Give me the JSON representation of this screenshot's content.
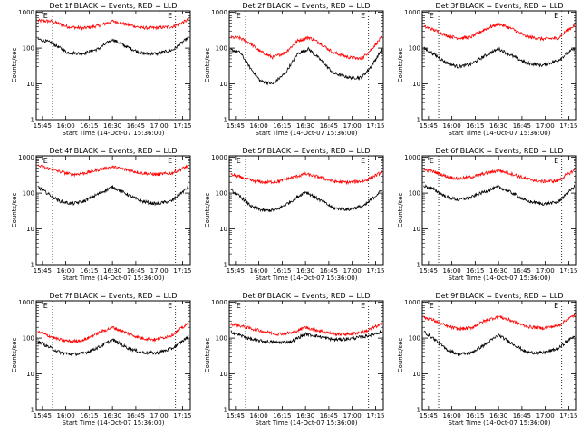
{
  "xlabel": "Start Time (14-Oct-07 15:36:00)",
  "ylabel": "Counts/sec",
  "x_ticks": [
    "15:45",
    "16:00",
    "16:15",
    "16:30",
    "16:45",
    "17:00",
    "17:15"
  ],
  "x_tick_minutes": [
    9,
    24,
    39,
    54,
    69,
    84,
    99
  ],
  "xlim_minutes": [
    5,
    104
  ],
  "y_ticks": [
    "1",
    "10",
    "100",
    "1000"
  ],
  "y_tick_values": [
    1,
    10,
    100,
    1000
  ],
  "ylim": [
    1,
    1100
  ],
  "y_scale": "log",
  "vertical_dotted_lines_minutes": [
    15.5,
    94.5
  ],
  "flag_labels": [
    "E",
    "E"
  ],
  "flag_minutes": [
    11,
    91
  ],
  "colors": {
    "events": "#000000",
    "lld": "#ff0000"
  },
  "chart_data": [
    {
      "type": "line",
      "title": "Det 1f BLACK = Events, RED = LLD",
      "series": [
        {
          "color": "#ff0000",
          "x": [
            6,
            15,
            25,
            35,
            45,
            54,
            63,
            73,
            83,
            93,
            103
          ],
          "y": [
            580,
            560,
            400,
            360,
            420,
            570,
            460,
            370,
            370,
            400,
            620
          ]
        },
        {
          "color": "#000000",
          "x": [
            6,
            15,
            25,
            35,
            45,
            54,
            63,
            73,
            83,
            93,
            103
          ],
          "y": [
            180,
            140,
            75,
            70,
            95,
            175,
            110,
            70,
            70,
            90,
            200
          ]
        }
      ]
    },
    {
      "type": "line",
      "title": "Det 2f BLACK = Events, RED = LLD",
      "series": [
        {
          "color": "#ff0000",
          "x": [
            6,
            12,
            18,
            25,
            33,
            41,
            49,
            56,
            63,
            72,
            82,
            90,
            96,
            103
          ],
          "y": [
            200,
            190,
            140,
            80,
            55,
            75,
            160,
            200,
            140,
            75,
            55,
            50,
            90,
            200
          ]
        },
        {
          "color": "#000000",
          "x": [
            6,
            12,
            18,
            25,
            33,
            41,
            49,
            56,
            63,
            72,
            82,
            90,
            96,
            103
          ],
          "y": [
            90,
            75,
            30,
            12,
            10,
            20,
            70,
            95,
            50,
            20,
            15,
            15,
            30,
            90
          ]
        }
      ]
    },
    {
      "type": "line",
      "title": "Det 3f BLACK = Events, RED = LLD",
      "series": [
        {
          "color": "#ff0000",
          "x": [
            6,
            12,
            20,
            28,
            36,
            45,
            54,
            63,
            72,
            82,
            92,
            103
          ],
          "y": [
            400,
            330,
            230,
            190,
            200,
            330,
            480,
            340,
            210,
            180,
            190,
            450
          ]
        },
        {
          "color": "#000000",
          "x": [
            6,
            12,
            20,
            28,
            36,
            45,
            54,
            63,
            72,
            82,
            92,
            103
          ],
          "y": [
            100,
            70,
            40,
            30,
            35,
            60,
            95,
            60,
            38,
            33,
            45,
            100
          ]
        }
      ]
    },
    {
      "type": "line",
      "title": "Det 4f BLACK = Events, RED = LLD",
      "series": [
        {
          "color": "#ff0000",
          "x": [
            6,
            12,
            20,
            28,
            36,
            45,
            54,
            63,
            72,
            82,
            92,
            103
          ],
          "y": [
            580,
            500,
            400,
            330,
            360,
            450,
            540,
            450,
            370,
            330,
            360,
            580
          ]
        },
        {
          "color": "#000000",
          "x": [
            6,
            12,
            20,
            28,
            36,
            45,
            54,
            63,
            72,
            82,
            92,
            103
          ],
          "y": [
            150,
            100,
            60,
            50,
            60,
            95,
            150,
            95,
            60,
            50,
            60,
            150
          ]
        }
      ]
    },
    {
      "type": "line",
      "title": "Det 5f BLACK = Events, RED = LLD",
      "series": [
        {
          "color": "#ff0000",
          "x": [
            6,
            12,
            20,
            28,
            36,
            45,
            54,
            63,
            72,
            82,
            92,
            103
          ],
          "y": [
            330,
            280,
            220,
            200,
            210,
            270,
            340,
            280,
            210,
            200,
            220,
            380
          ]
        },
        {
          "color": "#000000",
          "x": [
            6,
            12,
            20,
            28,
            36,
            45,
            54,
            63,
            72,
            82,
            92,
            103
          ],
          "y": [
            120,
            80,
            40,
            32,
            35,
            60,
            110,
            65,
            38,
            35,
            45,
            120
          ]
        }
      ]
    },
    {
      "type": "line",
      "title": "Det 6f BLACK = Events, RED = LLD",
      "series": [
        {
          "color": "#ff0000",
          "x": [
            6,
            12,
            20,
            28,
            36,
            45,
            54,
            63,
            72,
            82,
            92,
            103
          ],
          "y": [
            450,
            400,
            300,
            250,
            280,
            350,
            430,
            340,
            250,
            210,
            220,
            450
          ]
        },
        {
          "color": "#000000",
          "x": [
            6,
            12,
            20,
            28,
            36,
            45,
            54,
            63,
            72,
            82,
            92,
            103
          ],
          "y": [
            160,
            130,
            80,
            65,
            75,
            110,
            150,
            100,
            60,
            50,
            55,
            160
          ]
        }
      ]
    },
    {
      "type": "line",
      "title": "Det 7f BLACK = Events, RED = LLD",
      "series": [
        {
          "color": "#ff0000",
          "x": [
            6,
            12,
            20,
            28,
            36,
            45,
            54,
            63,
            72,
            82,
            92,
            103
          ],
          "y": [
            150,
            120,
            90,
            80,
            90,
            140,
            200,
            140,
            100,
            90,
            120,
            260
          ]
        },
        {
          "color": "#000000",
          "x": [
            6,
            12,
            20,
            28,
            36,
            45,
            54,
            63,
            72,
            82,
            92,
            103
          ],
          "y": [
            80,
            60,
            40,
            35,
            38,
            55,
            90,
            55,
            40,
            38,
            50,
            110
          ]
        }
      ]
    },
    {
      "type": "line",
      "title": "Det 8f BLACK = Events, RED = LLD",
      "series": [
        {
          "color": "#ff0000",
          "x": [
            6,
            12,
            20,
            28,
            36,
            45,
            54,
            63,
            72,
            82,
            92,
            103
          ],
          "y": [
            250,
            220,
            180,
            150,
            130,
            140,
            200,
            160,
            130,
            130,
            150,
            250
          ]
        },
        {
          "color": "#000000",
          "x": [
            6,
            12,
            20,
            28,
            36,
            45,
            54,
            63,
            72,
            82,
            92,
            103
          ],
          "y": [
            150,
            120,
            90,
            80,
            75,
            80,
            130,
            110,
            90,
            95,
            110,
            150
          ]
        }
      ]
    },
    {
      "type": "line",
      "title": "Det 9f BLACK = Events, RED = LLD",
      "series": [
        {
          "color": "#ff0000",
          "x": [
            6,
            12,
            20,
            28,
            36,
            45,
            54,
            63,
            72,
            82,
            92,
            103
          ],
          "y": [
            380,
            320,
            220,
            180,
            190,
            300,
            400,
            300,
            210,
            190,
            220,
            450
          ]
        },
        {
          "color": "#000000",
          "x": [
            6,
            12,
            20,
            28,
            36,
            45,
            54,
            63,
            72,
            82,
            92,
            103
          ],
          "y": [
            150,
            100,
            50,
            35,
            38,
            65,
            120,
            70,
            40,
            38,
            50,
            120
          ]
        }
      ]
    }
  ]
}
